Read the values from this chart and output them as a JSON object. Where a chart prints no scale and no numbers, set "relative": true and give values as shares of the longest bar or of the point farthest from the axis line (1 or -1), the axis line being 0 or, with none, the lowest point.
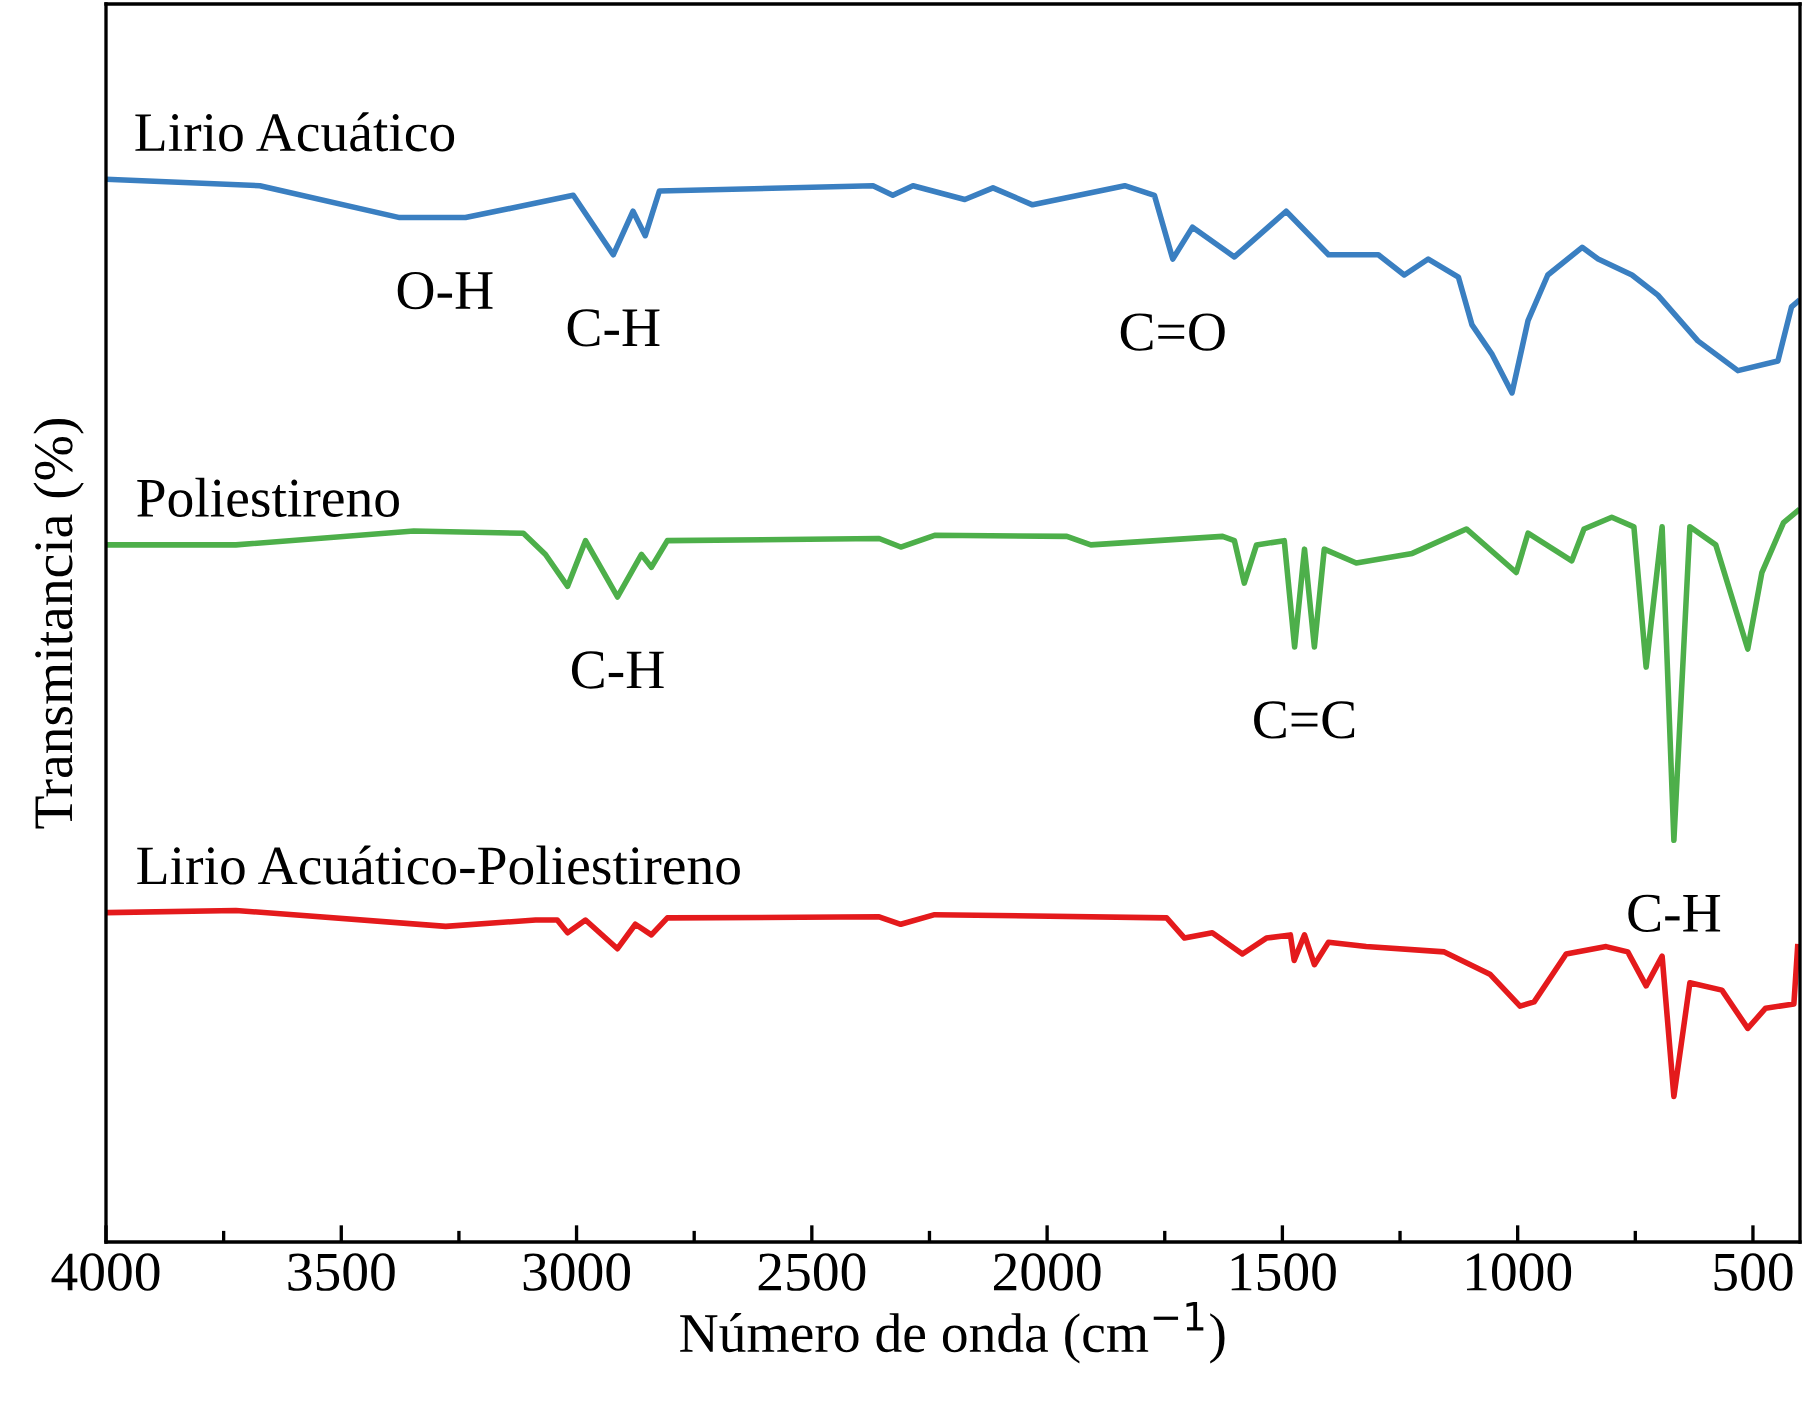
{
  "chart_data": {
    "type": "line",
    "relative": true,
    "xlabel": "Número de onda (cm$^{−1}$)",
    "ylabel": "Transmitancia (%)",
    "xlim": [
      4000,
      400
    ],
    "xticks": [
      4000,
      {
        "value": 3750,
        "label": null
      },
      3500,
      {
        "value": 3250,
        "label": null
      },
      3000,
      {
        "value": 2750,
        "label": null
      },
      2500,
      {
        "value": 2250,
        "label": null
      },
      2000,
      {
        "value": 1750,
        "label": null
      },
      1500,
      {
        "value": 1250,
        "label": null
      },
      1000,
      {
        "value": 750,
        "label": null
      },
      500
    ],
    "tick_labels": "x",
    "grid": false,
    "legend": false,
    "marker": "none",
    "line_style": "solid",
    "series": [
      {
        "name": "Lirio Acuático",
        "color": "#3a7fc1",
        "x": [
          4000,
          3673,
          3376,
          3236,
          3007,
          2922,
          2880,
          2854,
          2824,
          2370,
          2328,
          2285,
          2175,
          2115,
          2031,
          1835,
          1772,
          1733,
          1691,
          1602,
          1492,
          1402,
          1296,
          1241,
          1190,
          1126,
          1097,
          1054,
          1012,
          978,
          936,
          863,
          829,
          757,
          702,
          617,
          532,
          447,
          418,
          405
        ],
        "values": [
          1.0,
          0.994,
          0.964,
          0.964,
          0.985,
          0.929,
          0.97,
          0.947,
          0.989,
          0.994,
          0.985,
          0.994,
          0.981,
          0.992,
          0.976,
          0.994,
          0.985,
          0.925,
          0.955,
          0.927,
          0.97,
          0.929,
          0.929,
          0.91,
          0.925,
          0.908,
          0.863,
          0.835,
          0.799,
          0.867,
          0.91,
          0.936,
          0.925,
          0.91,
          0.891,
          0.848,
          0.82,
          0.829,
          0.88,
          0.885
        ]
      },
      {
        "name": "Poliestireno",
        "color": "#4daf4a",
        "x": [
          3996,
          3724,
          3346,
          3113,
          3066,
          3019,
          2981,
          2913,
          2862,
          2841,
          2807,
          2357,
          2311,
          2239,
          1958,
          1907,
          1627,
          1602,
          1581,
          1555,
          1496,
          1474,
          1453,
          1432,
          1411,
          1343,
          1224,
          1109,
          1003,
          978,
          885,
          859,
          800,
          753,
          727,
          693,
          668,
          634,
          579,
          511,
          481,
          435,
          405
        ],
        "values": [
          0.656,
          0.656,
          0.669,
          0.667,
          0.647,
          0.617,
          0.66,
          0.607,
          0.647,
          0.635,
          0.66,
          0.662,
          0.654,
          0.665,
          0.664,
          0.656,
          0.664,
          0.66,
          0.62,
          0.656,
          0.66,
          0.56,
          0.652,
          0.56,
          0.652,
          0.639,
          0.648,
          0.671,
          0.63,
          0.667,
          0.641,
          0.671,
          0.682,
          0.673,
          0.541,
          0.673,
          0.378,
          0.673,
          0.656,
          0.558,
          0.63,
          0.677,
          0.688
        ]
      },
      {
        "name": "Lirio Acuático-Poliestireno",
        "color": "#e41a1c",
        "x": [
          3996,
          3724,
          3278,
          3087,
          3041,
          3019,
          2981,
          2913,
          2875,
          2841,
          2807,
          2357,
          2311,
          2239,
          1746,
          1708,
          1649,
          1585,
          1534,
          1483,
          1475,
          1453,
          1432,
          1402,
          1322,
          1156,
          1059,
          995,
          965,
          897,
          812,
          766,
          727,
          693,
          668,
          634,
          566,
          511,
          473,
          413,
          405
        ],
        "values": [
          0.31,
          0.312,
          0.297,
          0.303,
          0.303,
          0.291,
          0.303,
          0.276,
          0.299,
          0.289,
          0.305,
          0.306,
          0.299,
          0.308,
          0.305,
          0.286,
          0.291,
          0.271,
          0.286,
          0.289,
          0.265,
          0.289,
          0.261,
          0.282,
          0.278,
          0.273,
          0.252,
          0.222,
          0.226,
          0.271,
          0.278,
          0.273,
          0.241,
          0.269,
          0.137,
          0.244,
          0.237,
          0.201,
          0.22,
          0.224,
          0.278
        ]
      }
    ],
    "annotations": [
      {
        "text": "O-H",
        "x": 3280,
        "y": 0.964
      },
      {
        "text": "C-H",
        "x": 2922,
        "y": 0.929
      },
      {
        "text": "C=O",
        "x": 1733,
        "y": 0.925
      },
      {
        "text": "C-H",
        "x": 2913,
        "y": 0.607
      },
      {
        "text": "C=C",
        "x": 1453,
        "y": 0.56
      },
      {
        "text": "C-H",
        "x": 668,
        "y": 0.378
      }
    ]
  }
}
